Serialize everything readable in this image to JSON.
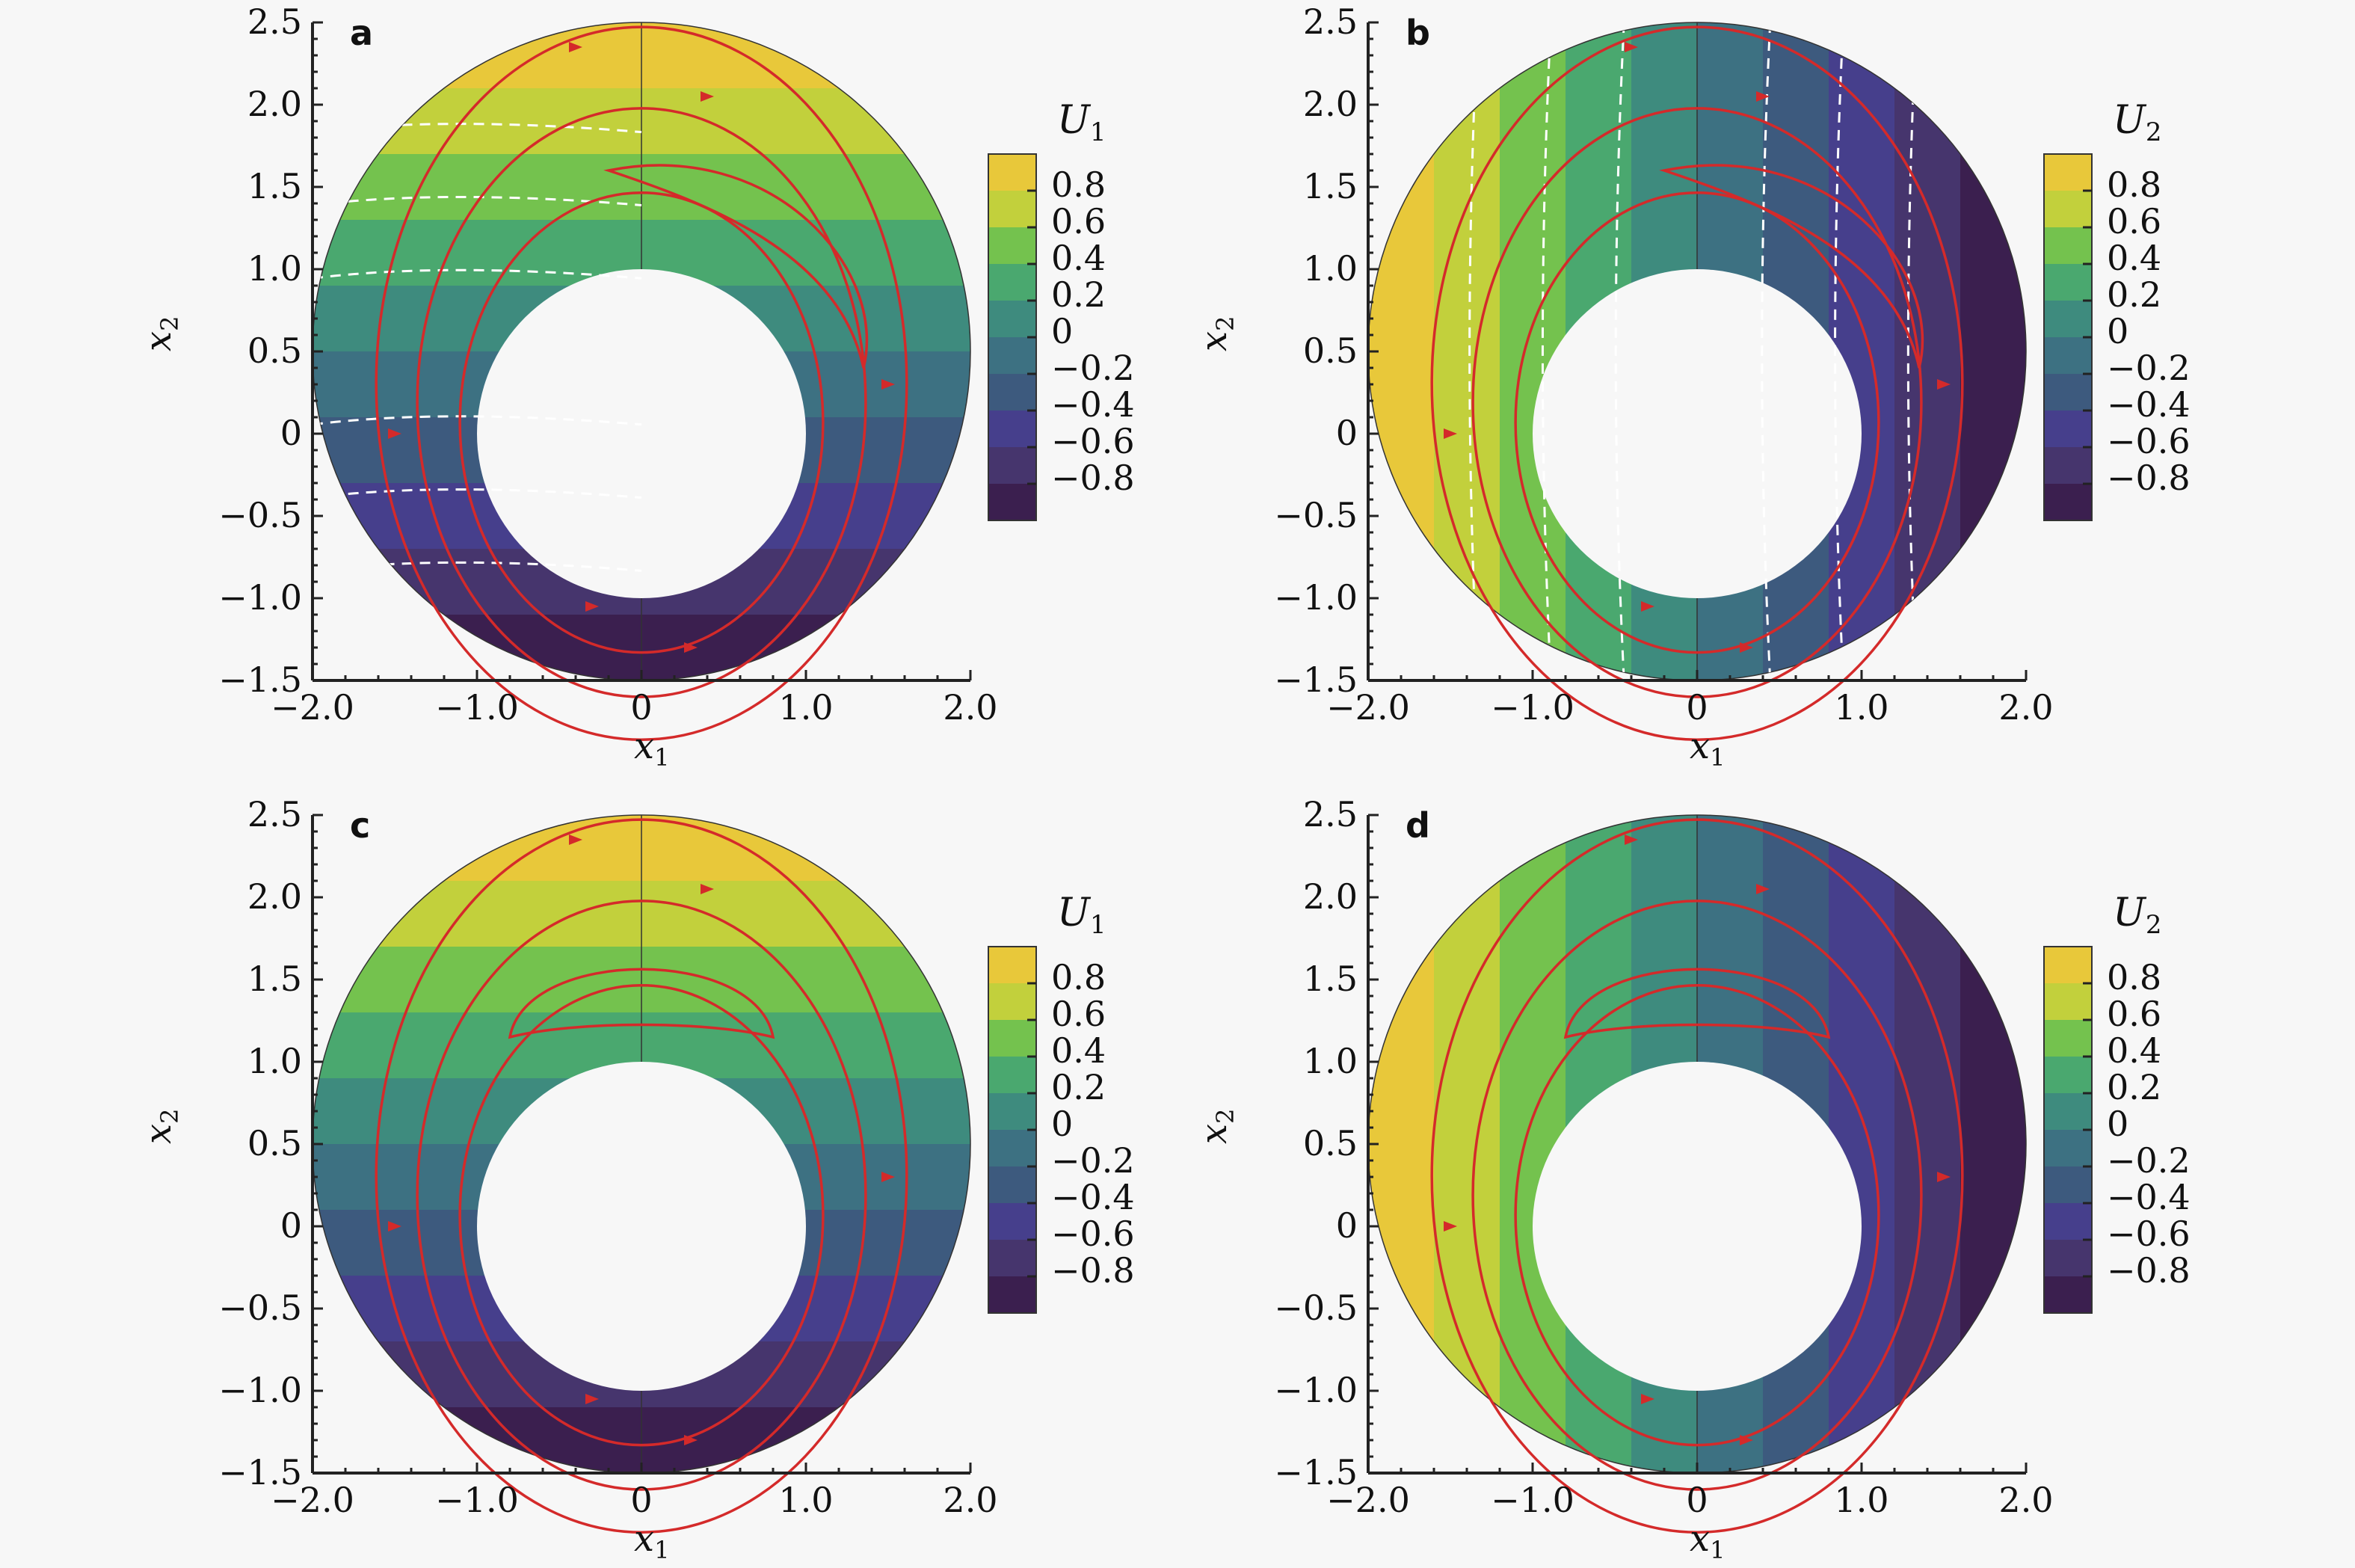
{
  "chart_data": [
    {
      "type": "heatmap",
      "panel": "a",
      "field": "U",
      "field_sub": "1",
      "field_pattern": "x",
      "xlabel": "x",
      "xlabel_sub": "1",
      "ylabel": "x",
      "ylabel_sub": "2",
      "xlim": [
        -2.0,
        2.0
      ],
      "ylim": [
        -1.5,
        2.5
      ],
      "x_ticks": [
        "−2.0",
        "−1.0",
        "0",
        "1.0",
        "2.0"
      ],
      "y_ticks": [
        "2.5",
        "2.0",
        "1.5",
        "1.0",
        "0.5",
        "0",
        "−0.5",
        "−1.0",
        "−1.5"
      ],
      "domain": {
        "outer_radius": 2.0,
        "outer_center": [
          0,
          0.5
        ],
        "inner_radius": 1.0,
        "inner_center": [
          0,
          0
        ]
      },
      "colorbar": {
        "levels": [
          "0.8",
          "0.6",
          "0.4",
          "0.2",
          "0",
          "−0.2",
          "−0.4",
          "−0.6",
          "−0.8"
        ],
        "range": [
          -0.9,
          0.9
        ]
      },
      "dashed_contours": true,
      "streamlines": "asymmetric"
    },
    {
      "type": "heatmap",
      "panel": "b",
      "field": "U",
      "field_sub": "2",
      "field_pattern": "y",
      "xlabel": "x",
      "xlabel_sub": "1",
      "ylabel": "x",
      "ylabel_sub": "2",
      "xlim": [
        -2.0,
        2.0
      ],
      "ylim": [
        -1.5,
        2.5
      ],
      "x_ticks": [
        "−2.0",
        "−1.0",
        "0",
        "1.0",
        "2.0"
      ],
      "y_ticks": [
        "2.5",
        "2.0",
        "1.5",
        "1.0",
        "0.5",
        "0",
        "−0.5",
        "−1.0",
        "−1.5"
      ],
      "domain": {
        "outer_radius": 2.0,
        "outer_center": [
          0,
          0.5
        ],
        "inner_radius": 1.0,
        "inner_center": [
          0,
          0
        ]
      },
      "colorbar": {
        "levels": [
          "0.8",
          "0.6",
          "0.4",
          "0.2",
          "0",
          "−0.2",
          "−0.4",
          "−0.6",
          "−0.8"
        ],
        "range": [
          -0.9,
          0.9
        ]
      },
      "dashed_contours": true,
      "streamlines": "asymmetric"
    },
    {
      "type": "heatmap",
      "panel": "c",
      "field": "U",
      "field_sub": "1",
      "field_pattern": "x",
      "xlabel": "x",
      "xlabel_sub": "1",
      "ylabel": "x",
      "ylabel_sub": "2",
      "xlim": [
        -2.0,
        2.0
      ],
      "ylim": [
        -1.5,
        2.5
      ],
      "x_ticks": [
        "−2.0",
        "−1.0",
        "0",
        "1.0",
        "2.0"
      ],
      "y_ticks": [
        "2.5",
        "2.0",
        "1.5",
        "1.0",
        "0.5",
        "0",
        "−0.5",
        "−1.0",
        "−1.5"
      ],
      "domain": {
        "outer_radius": 2.0,
        "outer_center": [
          0,
          0.5
        ],
        "inner_radius": 1.0,
        "inner_center": [
          0,
          0
        ]
      },
      "colorbar": {
        "levels": [
          "0.8",
          "0.6",
          "0.4",
          "0.2",
          "0",
          "−0.2",
          "−0.4",
          "−0.6",
          "−0.8"
        ],
        "range": [
          -0.9,
          0.9
        ]
      },
      "dashed_contours": false,
      "streamlines": "symmetric"
    },
    {
      "type": "heatmap",
      "panel": "d",
      "field": "U",
      "field_sub": "2",
      "field_pattern": "y",
      "xlabel": "x",
      "xlabel_sub": "1",
      "ylabel": "x",
      "ylabel_sub": "2",
      "xlim": [
        -2.0,
        2.0
      ],
      "ylim": [
        -1.5,
        2.5
      ],
      "x_ticks": [
        "−2.0",
        "−1.0",
        "0",
        "1.0",
        "2.0"
      ],
      "y_ticks": [
        "2.5",
        "2.0",
        "1.5",
        "1.0",
        "0.5",
        "0",
        "−0.5",
        "−1.0",
        "−1.5"
      ],
      "domain": {
        "outer_radius": 2.0,
        "outer_center": [
          0,
          0.5
        ],
        "inner_radius": 1.0,
        "inner_center": [
          0,
          0
        ]
      },
      "colorbar": {
        "levels": [
          "0.8",
          "0.6",
          "0.4",
          "0.2",
          "0",
          "−0.2",
          "−0.4",
          "−0.6",
          "−0.8"
        ],
        "range": [
          -0.9,
          0.9
        ]
      },
      "dashed_contours": false,
      "streamlines": "symmetric"
    }
  ],
  "colors": {
    "colormap": [
      "#3b1f4f",
      "#46356d",
      "#463f8c",
      "#3d5a7e",
      "#3d7182",
      "#3e8b7e",
      "#4aa86f",
      "#74c24e",
      "#c2d03c",
      "#e8c83a"
    ],
    "streamline": "#d42a2a",
    "dashed_contour": "#ffffff",
    "background": "#f7f7f7"
  }
}
